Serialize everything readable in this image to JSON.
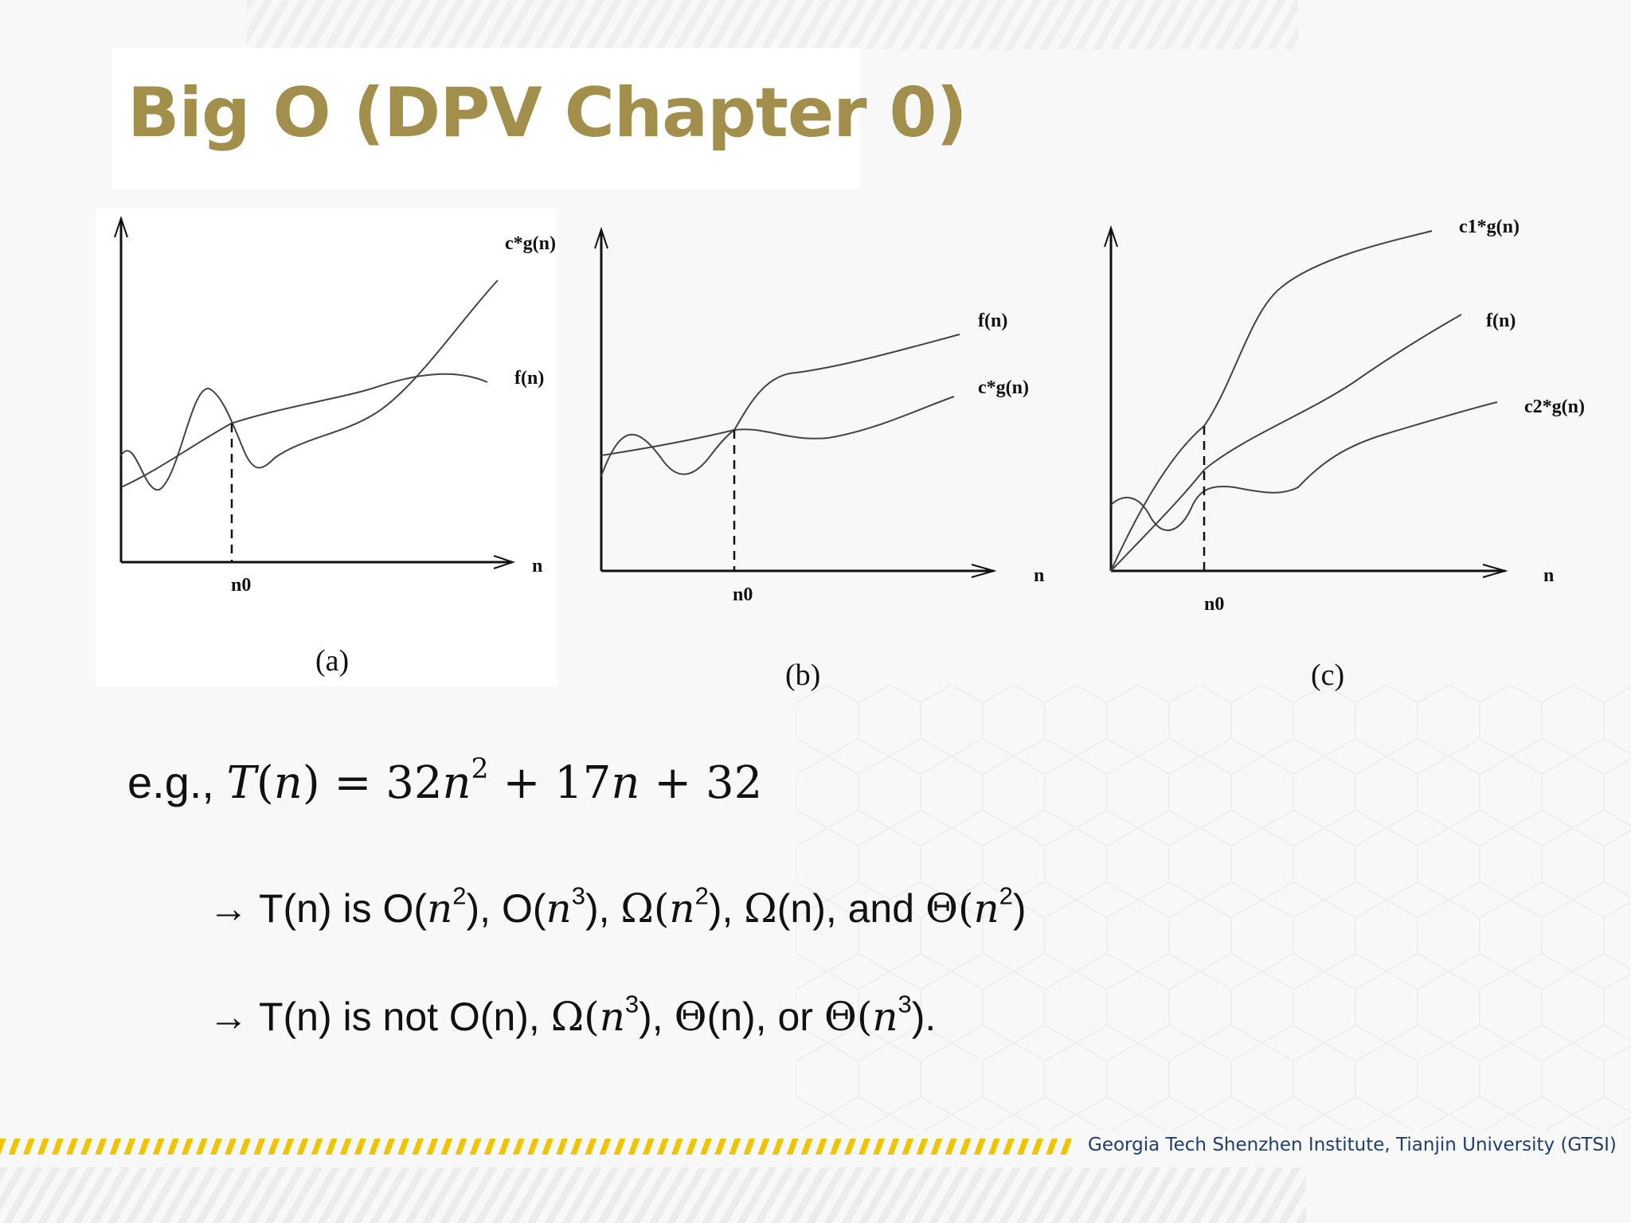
{
  "slide": {
    "title": "Big O (DPV Chapter 0)",
    "footer": "Georgia Tech Shenzhen Institute, Tianjin University (GTSI)"
  },
  "figure": {
    "panels": [
      {
        "caption": "(a)",
        "upper_curve_label": "c*g(n)",
        "lower_curve_label": "f(n)",
        "x_axis_label": "n",
        "threshold_label": "n0"
      },
      {
        "caption": "(b)",
        "upper_curve_label": "f(n)",
        "lower_curve_label": "c*g(n)",
        "x_axis_label": "n",
        "threshold_label": "n0"
      },
      {
        "caption": "(c)",
        "upper_curve_label": "c1*g(n)",
        "middle_curve_label": "f(n)",
        "lower_curve_label": "c2*g(n)",
        "x_axis_label": "n",
        "threshold_label": "n0"
      }
    ]
  },
  "example": {
    "prefix": "e.g.,",
    "T": "T",
    "lparen": "(",
    "n": "n",
    "rparen": ")",
    "eq": " = 32",
    "n2": "n",
    "exp2": "2",
    "plus1": " + 17",
    "n3": "n",
    "plus2": " + 32"
  },
  "bullets": [
    {
      "arrow": "→",
      "t0": " T(n) is O(",
      "n1": "n",
      "e1": "2",
      "t1": "), O(",
      "n2": "n",
      "e2": "3",
      "t2": "), ",
      "om1": "Ω(",
      "n3": "n",
      "e3": "2",
      "t3": "), ",
      "om2": "Ω",
      "t4": "(n), and ",
      "th1": "Θ(",
      "n4": "n",
      "e4": "2",
      "t5": ")"
    },
    {
      "arrow": "→",
      "t0": " T(n) is not O(n), ",
      "om1": "Ω(",
      "n1": "n",
      "e1": "3",
      "t1": "), ",
      "th1": "Θ",
      "t2": "(n), or ",
      "th2": "Θ(",
      "n2": "n",
      "e2": "3",
      "t3": ")."
    }
  ]
}
